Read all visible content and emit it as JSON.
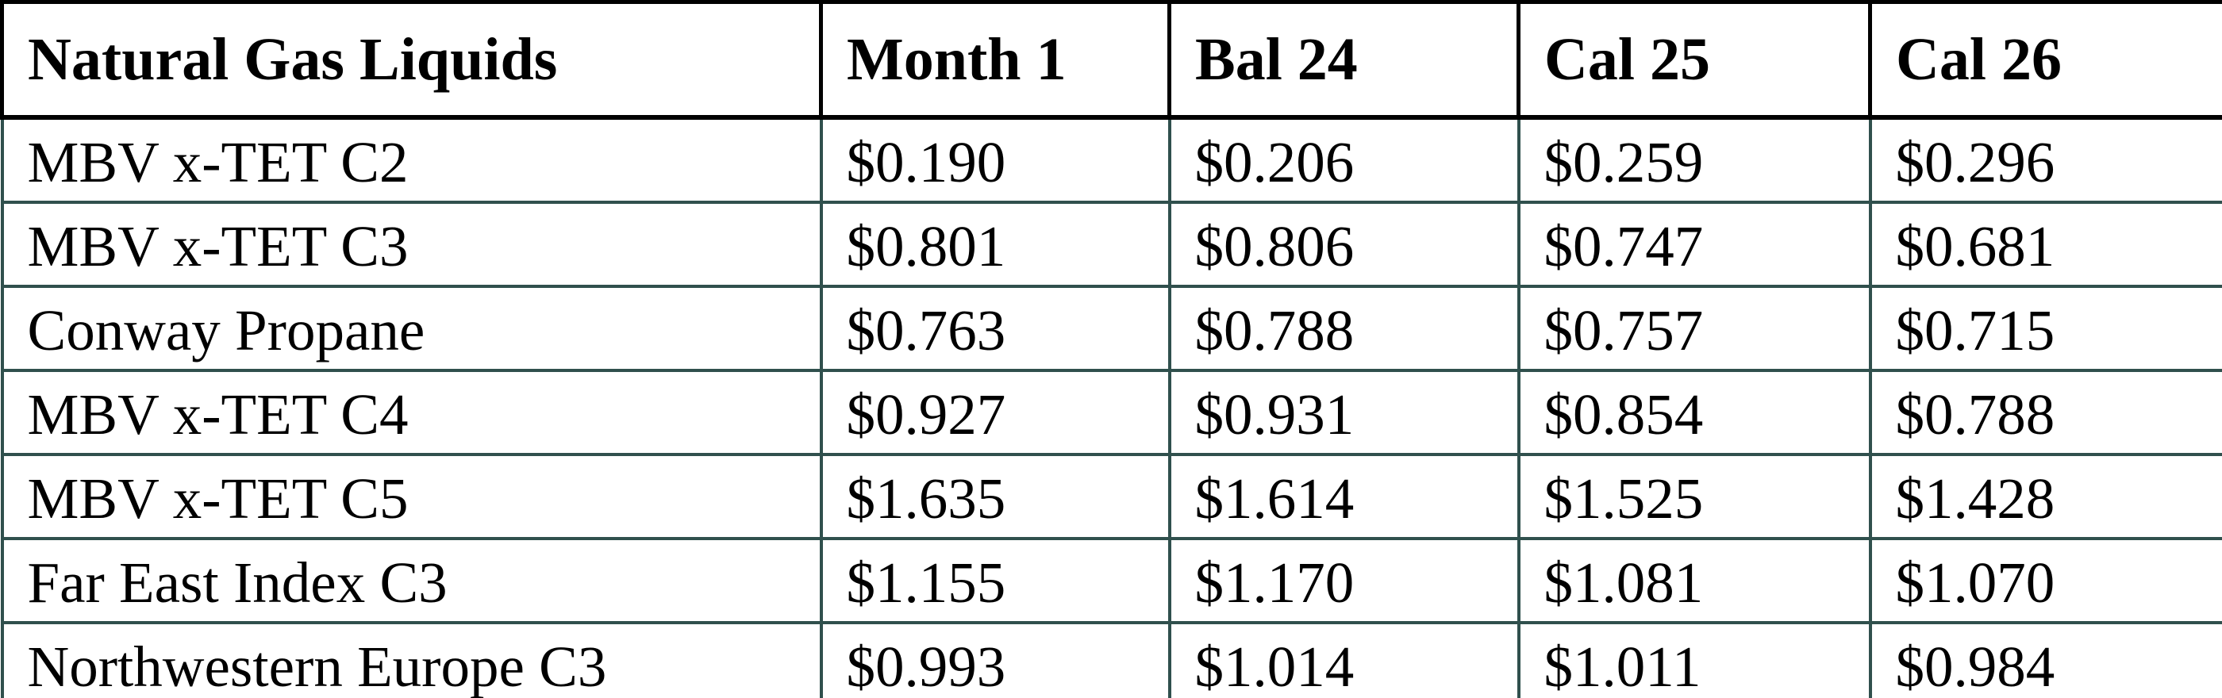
{
  "table": {
    "title": "Natural Gas Liquids",
    "columns": [
      "Month 1",
      "Bal 24",
      "Cal 25",
      "Cal 26"
    ],
    "rows": [
      {
        "label": "MBV x-TET C2",
        "values": [
          "$0.190",
          "$0.206",
          "$0.259",
          "$0.296"
        ]
      },
      {
        "label": "MBV x-TET C3",
        "values": [
          "$0.801",
          "$0.806",
          "$0.747",
          "$0.681"
        ]
      },
      {
        "label": "Conway Propane",
        "values": [
          "$0.763",
          "$0.788",
          "$0.757",
          "$0.715"
        ]
      },
      {
        "label": "MBV x-TET C4",
        "values": [
          "$0.927",
          "$0.931",
          "$0.854",
          "$0.788"
        ]
      },
      {
        "label": "MBV x-TET C5",
        "values": [
          "$1.635",
          "$1.614",
          "$1.525",
          "$1.428"
        ]
      },
      {
        "label": "Far East Index C3",
        "values": [
          "$1.155",
          "$1.170",
          "$1.081",
          "$1.070"
        ]
      },
      {
        "label": "Northwestern Europe C3",
        "values": [
          "$0.993",
          "$1.014",
          "$1.011",
          "$0.984"
        ]
      }
    ],
    "colors": {
      "header_border": "#000000",
      "grid_line": "#30504d",
      "text": "#000000",
      "background": "#ffffff"
    }
  },
  "chart_data": {
    "type": "table",
    "title": "Natural Gas Liquids",
    "columns": [
      "Month 1",
      "Bal 24",
      "Cal 25",
      "Cal 26"
    ],
    "unit": "$ (USD)",
    "rows": [
      {
        "label": "MBV x-TET C2",
        "values": [
          0.19,
          0.206,
          0.259,
          0.296
        ]
      },
      {
        "label": "MBV x-TET C3",
        "values": [
          0.801,
          0.806,
          0.747,
          0.681
        ]
      },
      {
        "label": "Conway Propane",
        "values": [
          0.763,
          0.788,
          0.757,
          0.715
        ]
      },
      {
        "label": "MBV x-TET C4",
        "values": [
          0.927,
          0.931,
          0.854,
          0.788
        ]
      },
      {
        "label": "MBV x-TET C5",
        "values": [
          1.635,
          1.614,
          1.525,
          1.428
        ]
      },
      {
        "label": "Far East Index C3",
        "values": [
          1.155,
          1.17,
          1.081,
          1.07
        ]
      },
      {
        "label": "Northwestern Europe C3",
        "values": [
          0.993,
          1.014,
          1.011,
          0.984
        ]
      }
    ]
  }
}
